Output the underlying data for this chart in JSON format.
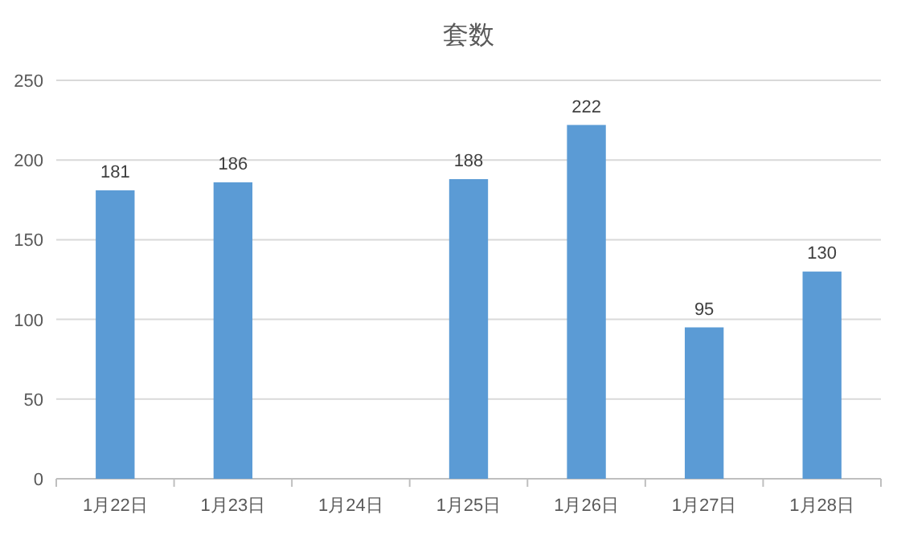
{
  "chart_data": {
    "type": "bar",
    "title": "套数",
    "categories": [
      "1月22日",
      "1月23日",
      "1月24日",
      "1月25日",
      "1月26日",
      "1月27日",
      "1月28日"
    ],
    "values": [
      181,
      186,
      null,
      188,
      222,
      95,
      130
    ],
    "color": "#5b9bd5",
    "ylim": [
      0,
      250
    ],
    "yticks": [
      0,
      50,
      100,
      150,
      200,
      250
    ],
    "grid": "y",
    "data_labels": true
  }
}
